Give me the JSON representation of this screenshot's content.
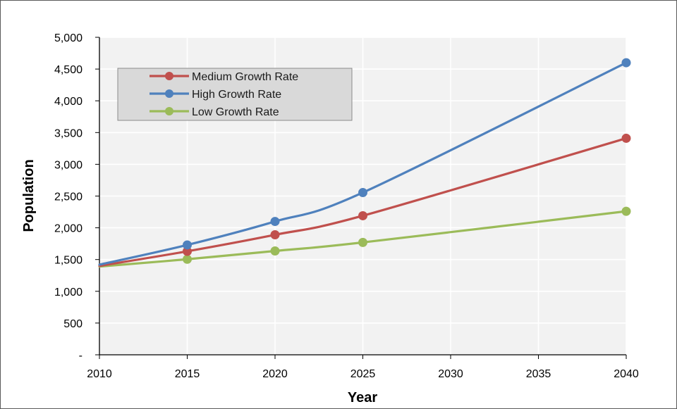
{
  "chart_data": {
    "type": "line",
    "xlabel": "Year",
    "ylabel": "Population",
    "xlim": [
      2010,
      2040
    ],
    "ylim": [
      0,
      5000
    ],
    "x_ticks": [
      "2010",
      "2015",
      "2020",
      "2025",
      "2030",
      "2035",
      "2040"
    ],
    "y_ticks": [
      "-",
      "500",
      "1,000",
      "1,500",
      "2,000",
      "2,500",
      "3,000",
      "3,500",
      "4,000",
      "4,500",
      "5,000"
    ],
    "grid": true,
    "legend_position": "top-left",
    "plot_background": "#f2f2f2",
    "series": [
      {
        "name": "Medium Growth Rate",
        "color": "#c0504d",
        "x": [
          2010,
          2015,
          2020,
          2025,
          2040
        ],
        "y": [
          1400,
          1630,
          1890,
          2190,
          3410
        ],
        "markers": [
          false,
          true,
          true,
          true,
          true
        ]
      },
      {
        "name": "High Growth Rate",
        "color": "#4f81bd",
        "x": [
          2010,
          2015,
          2020,
          2025,
          2040
        ],
        "y": [
          1420,
          1730,
          2100,
          2555,
          4600
        ],
        "markers": [
          false,
          true,
          true,
          true,
          true
        ]
      },
      {
        "name": "Low Growth Rate",
        "color": "#9bbb59",
        "x": [
          2010,
          2015,
          2020,
          2025,
          2040
        ],
        "y": [
          1390,
          1505,
          1635,
          1770,
          2260
        ],
        "markers": [
          false,
          true,
          true,
          true,
          true
        ]
      }
    ]
  }
}
